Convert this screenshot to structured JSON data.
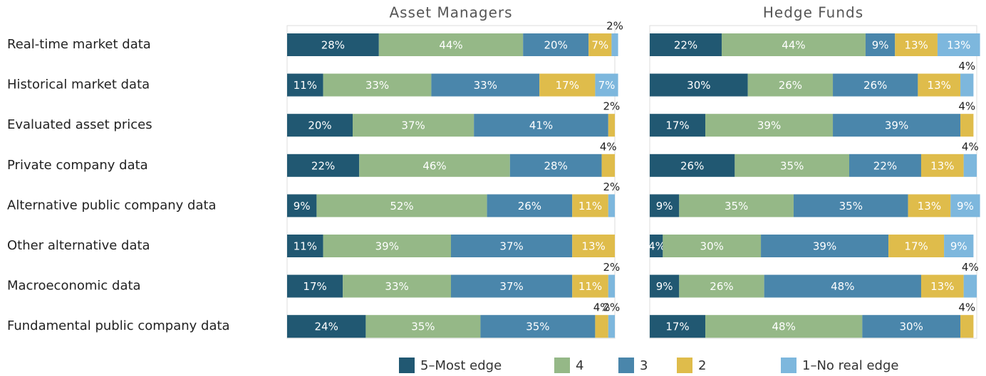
{
  "chart_data": [
    {
      "type": "bar",
      "title": "Asset Managers",
      "xlim": [
        0,
        100
      ],
      "categories": [
        "Real-time market data",
        "Historical market data",
        "Evaluated asset prices",
        "Private company data",
        "Alternative public company data",
        "Other alternative data",
        "Macroeconomic data",
        "Fundamental public company data"
      ],
      "series": [
        {
          "name": "5–Most edge",
          "color": "#215872",
          "values": [
            28,
            11,
            20,
            22,
            9,
            11,
            17,
            24
          ],
          "value_labels": [
            "28%",
            "11%",
            "20%",
            "22%",
            "9%",
            "11%",
            "17%",
            "24%"
          ]
        },
        {
          "name": "4",
          "color": "#95b887",
          "values": [
            44,
            33,
            37,
            46,
            52,
            39,
            33,
            35
          ],
          "value_labels": [
            "44%",
            "33%",
            "37%",
            "46%",
            "52%",
            "39%",
            "33%",
            "35%"
          ]
        },
        {
          "name": "3",
          "color": "#4a86ab",
          "values": [
            20,
            33,
            41,
            28,
            26,
            37,
            37,
            35
          ],
          "value_labels": [
            "20%",
            "33%",
            "41%",
            "28%",
            "26%",
            "37%",
            "37%",
            "35%"
          ]
        },
        {
          "name": "2",
          "color": "#dfbc4b",
          "values": [
            7,
            17,
            2,
            4,
            11,
            13,
            11,
            4
          ],
          "value_labels": [
            "7%",
            "17%",
            "2%",
            "4%",
            "11%",
            "13%",
            "11%",
            "4%"
          ]
        },
        {
          "name": "1–No real edge",
          "color": "#7db7dd",
          "values": [
            2,
            7,
            0,
            0,
            2,
            0,
            2,
            2
          ],
          "value_labels": [
            "2%",
            "7%",
            null,
            null,
            "2%",
            null,
            "2%",
            "2%"
          ]
        }
      ]
    },
    {
      "type": "bar",
      "title": "Hedge Funds",
      "xlim": [
        0,
        100
      ],
      "series": [
        {
          "color": "#215872",
          "values": [
            22,
            30,
            17,
            26,
            9,
            4,
            9,
            17
          ],
          "value_labels": [
            "22%",
            "30%",
            "17%",
            "26%",
            "9%",
            "4%",
            "9%",
            "17%"
          ]
        },
        {
          "color": "#95b887",
          "values": [
            44,
            26,
            39,
            35,
            35,
            30,
            26,
            48
          ],
          "value_labels": [
            "44%",
            "26%",
            "39%",
            "35%",
            "35%",
            "30%",
            "26%",
            "48%"
          ]
        },
        {
          "color": "#4a86ab",
          "values": [
            9,
            26,
            39,
            22,
            35,
            39,
            48,
            30
          ],
          "value_labels": [
            "9%",
            "26%",
            "39%",
            "22%",
            "35%",
            "39%",
            "48%",
            "30%"
          ]
        },
        {
          "color": "#dfbc4b",
          "values": [
            13,
            13,
            4,
            13,
            13,
            17,
            13,
            4
          ],
          "value_labels": [
            "13%",
            "13%",
            "4%",
            "13%",
            "13%",
            "17%",
            "13%",
            "4%"
          ]
        },
        {
          "color": "#7db7dd",
          "values": [
            13,
            4,
            0,
            4,
            9,
            9,
            4,
            0
          ],
          "value_labels": [
            "13%",
            "4%",
            null,
            "4%",
            "9%",
            "9%",
            "4%",
            null
          ]
        }
      ]
    }
  ]
}
